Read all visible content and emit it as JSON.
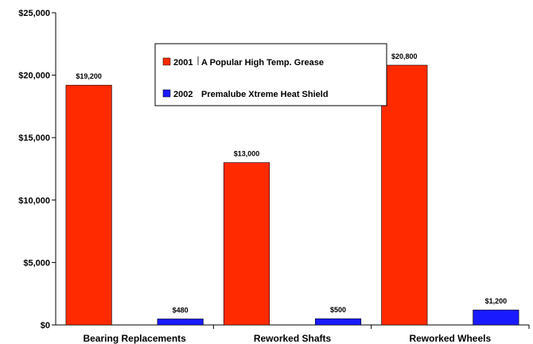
{
  "chart_data": {
    "type": "bar",
    "categories": [
      "Bearing Replacements",
      "Reworked Shafts",
      "Reworked Wheels"
    ],
    "series": [
      {
        "name": "2001 A Popular High Temp. Grease",
        "legend_year": "2001",
        "legend_desc": "A Popular High Temp. Grease",
        "color": "#ff2a00",
        "values": [
          19200,
          13000,
          20800
        ],
        "labels": [
          "$19,200",
          "$13,000",
          "$20,800"
        ]
      },
      {
        "name": "2002 Premalube Xtreme Heat Shield",
        "legend_year": "2002",
        "legend_desc": "Premalube Xtreme Heat Shield",
        "color": "#1a1aff",
        "values": [
          480,
          500,
          1200
        ],
        "labels": [
          "$480",
          "$500",
          "$1,200"
        ]
      }
    ],
    "ylim": [
      0,
      25000
    ],
    "yticks": [
      0,
      5000,
      10000,
      15000,
      20000,
      25000
    ],
    "ytick_labels": [
      "$0",
      "$5,000",
      "$10,000",
      "$15,000",
      "$20,000",
      "$25,000"
    ],
    "title": "",
    "xlabel": "",
    "ylabel": "",
    "grid": false,
    "legend_position": "top-center"
  }
}
